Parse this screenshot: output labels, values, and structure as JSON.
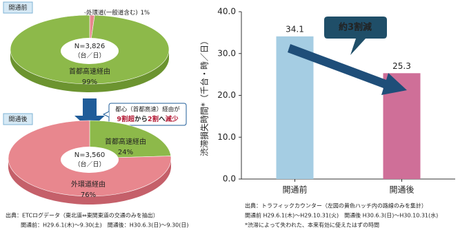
{
  "chart_data": [
    {
      "type": "pie",
      "title": "開通前",
      "center_text": [
        "N=3,826",
        "（台／日）"
      ],
      "categories": [
        "外環道(一般道含む)",
        "首都高速経由"
      ],
      "values": [
        1,
        99
      ],
      "value_labels": [
        "1%",
        "99%"
      ],
      "colors": [
        "#e8878e",
        "#8db94a"
      ],
      "side_colors": [
        "#c5606a",
        "#6c9430"
      ]
    },
    {
      "type": "pie",
      "title": "開通後",
      "center_text": [
        "N=3,560",
        "（台／日）"
      ],
      "categories": [
        "首都高速経由",
        "外環道経由"
      ],
      "values": [
        24,
        76
      ],
      "value_labels": [
        "24%",
        "76%"
      ],
      "colors": [
        "#8db94a",
        "#e8878e"
      ],
      "side_colors": [
        "#6c9430",
        "#c5606a"
      ]
    },
    {
      "type": "bar",
      "y_label": "渋滞損失時間*（千台・時／日）",
      "categories": [
        "開通前",
        "開通後"
      ],
      "values": [
        34.1,
        25.3
      ],
      "colors": [
        "#a5cde3",
        "#cf6f98"
      ],
      "ylim": [
        0,
        40
      ],
      "yticks": [
        {
          "value": 0,
          "label": "0.0"
        },
        {
          "value": 10,
          "label": "10.0"
        },
        {
          "value": 20,
          "label": "20.0"
        },
        {
          "value": 30,
          "label": "30.0"
        },
        {
          "value": 40,
          "label": "40.0"
        }
      ],
      "annotation": "約3割減"
    }
  ],
  "callout": {
    "line1": "都心（首都高速）経由が",
    "line2": [
      "9割超",
      "から",
      "2割",
      "へ",
      "減少"
    ]
  },
  "notes": {
    "left": [
      "出典：ETCログデータ（東北道⇔東関東道の交通のみを抽出）",
      "開通前：H29.6.1(木)～9.30(土)　開通後：H30.6.3(日)～9.30(日)"
    ],
    "right": [
      "出典：トラフィックカウンター（左図の黄色ハッチ内の路線のみを集計）",
      "開通前 H29.6.1(木)～H29.10.31(火)　開通後 H30.6.3(日)～H30.10.31(水)",
      "*渋滞によって失われた、本来有効に使えたはずの時間"
    ]
  }
}
